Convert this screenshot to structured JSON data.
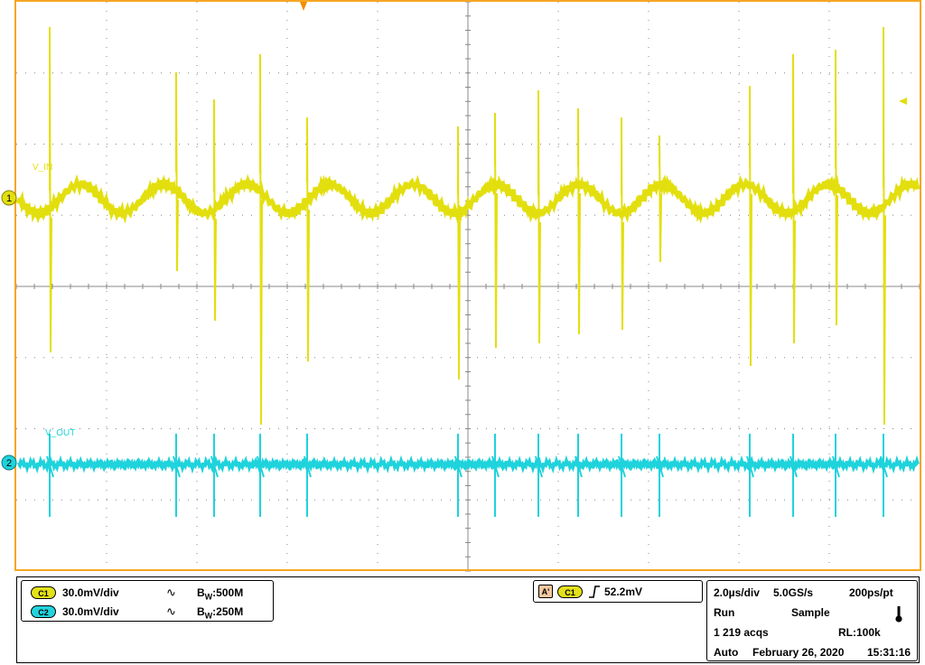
{
  "screen": {
    "trace_labels": {
      "ch1": "V_IN",
      "ch2": "V_OUT"
    },
    "ground_markers": {
      "ch1": "1",
      "ch2": "2"
    },
    "colors": {
      "ch1": "#e3df0e",
      "ch2": "#1ed3dc",
      "frame": "#f5a623",
      "grid": "#888888",
      "trigger_marker": "#f28c00"
    }
  },
  "channels": [
    {
      "badge": "C1",
      "scale": "30.0mV/div",
      "coupling_icon": "ac-coupling-icon",
      "bw_prefix": "B",
      "bw_sub": "W",
      "bw_value": ":500M"
    },
    {
      "badge": "C2",
      "scale": "30.0mV/div",
      "coupling_icon": "ac-coupling-icon",
      "bw_prefix": "B",
      "bw_sub": "W",
      "bw_value": ":250M"
    }
  ],
  "trigger": {
    "mode_badge": "A'",
    "source": "C1",
    "slope_icon": "rising-edge-icon",
    "level": "52.2mV"
  },
  "acquisition": {
    "timebase": "2.0µs/div",
    "sample_rate": "5.0GS/s",
    "resolution": "200ps/pt",
    "state": "Run",
    "mode": "Sample",
    "record_length": "RL:100k",
    "acq_count": "1 219 acqs",
    "trigger_mode": "Auto",
    "date": "February 26, 2020",
    "time": "15:31:16",
    "status_icon": "thermometer-icon"
  }
}
